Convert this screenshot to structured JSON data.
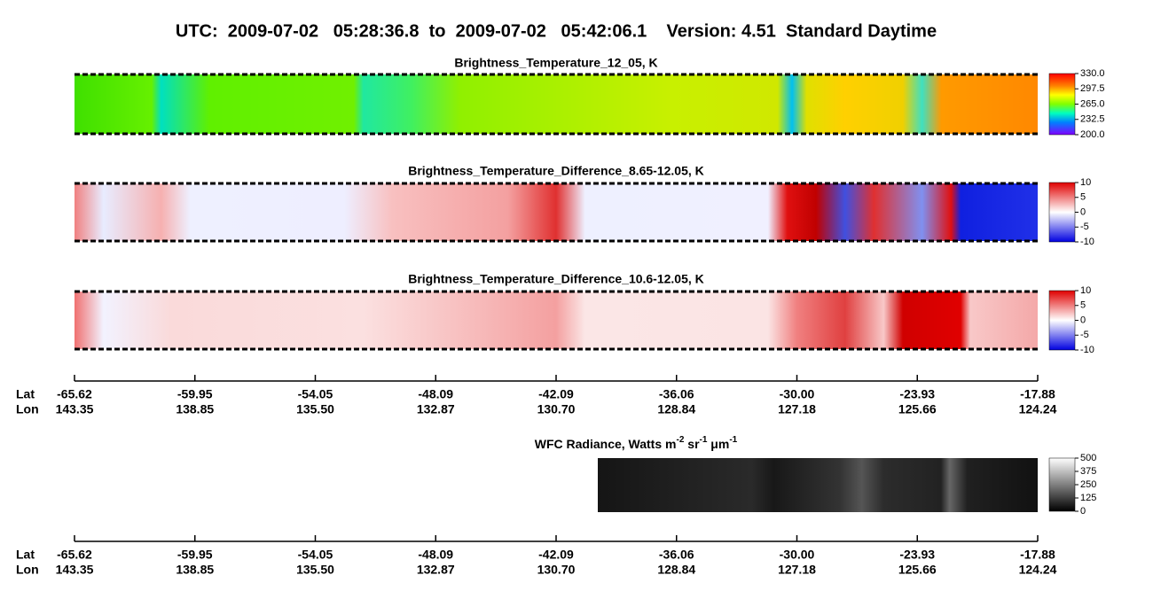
{
  "title": "UTC:  2009-07-02   05:28:36.8  to  2009-07-02   05:42:06.1    Version: 4.51  Standard Daytime",
  "panels": [
    {
      "title": "Brightness_Temperature_12_05, K",
      "ticks": [
        "330.0",
        "297.5",
        "265.0",
        "232.5",
        "200.0"
      ]
    },
    {
      "title": "Brightness_Temperature_Difference_8.65-12.05, K",
      "ticks": [
        "10",
        "5",
        "0",
        "-5",
        "-10"
      ]
    },
    {
      "title": "Brightness_Temperature_Difference_10.6-12.05, K",
      "ticks": [
        "10",
        "5",
        "0",
        "-5",
        "-10"
      ]
    },
    {
      "title_parts": [
        "WFC Radiance, Watts m",
        "-2",
        " sr",
        "-1",
        " μm",
        "-1"
      ],
      "ticks": [
        "500",
        "375",
        "250",
        "125",
        "0"
      ]
    }
  ],
  "axes": [
    {
      "lat_label": "Lat",
      "lon_label": "Lon",
      "lat": [
        "-65.62",
        "-59.95",
        "-54.05",
        "-48.09",
        "-42.09",
        "-36.06",
        "-30.00",
        "-23.93",
        "-17.88"
      ],
      "lon": [
        "143.35",
        "138.85",
        "135.50",
        "132.87",
        "130.70",
        "128.84",
        "127.18",
        "125.66",
        "124.24"
      ]
    },
    {
      "lat_label": "Lat",
      "lon_label": "Lon",
      "lat": [
        "-65.62",
        "-59.95",
        "-54.05",
        "-48.09",
        "-42.09",
        "-36.06",
        "-30.00",
        "-23.93",
        "-17.88"
      ],
      "lon": [
        "143.35",
        "138.85",
        "135.50",
        "132.87",
        "130.70",
        "128.84",
        "127.18",
        "125.66",
        "124.24"
      ]
    }
  ]
}
